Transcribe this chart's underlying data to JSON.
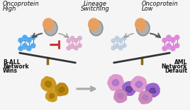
{
  "bg_color": "#f5f5f5",
  "text_color": "#111111",
  "left_title": [
    "Oncoprotein",
    "High"
  ],
  "center_title": [
    "Lineage",
    "Switching"
  ],
  "right_title": [
    "Oncoprotein",
    "Low"
  ],
  "left_bottom": [
    "B-ALL",
    "Network",
    "Wins"
  ],
  "right_bottom": [
    "AML",
    "Network",
    "Default"
  ],
  "protein_orange": "#e8a060",
  "protein_gray": "#909090",
  "protein_gray2": "#b0b0b0",
  "net_blue_edge": "#3388cc",
  "net_blue_node": "#55aaee",
  "net_pink_edge": "#cc99bb",
  "net_pink_node": "#ddaacc",
  "net_lgray_edge": "#aabbcc",
  "net_lgray_node": "#bbccdd",
  "net_purple_edge": "#bb77bb",
  "net_purple_node": "#dd88dd",
  "inhibit_red": "#cc3333",
  "arrow_gray": "#999999",
  "arrow_dark": "#555555",
  "cell_gold1": "#cc9922",
  "cell_gold2": "#bb8811",
  "cell_gold_dark": "#996600",
  "cell_pink1": "#dd99cc",
  "cell_pink2": "#cc88bb",
  "cell_purple1": "#9966cc",
  "cell_purple2": "#aa77bb",
  "seesaw_beam": "#333333",
  "seesaw_post": "#8B6914",
  "transition_arrow": "#aaaaaa"
}
